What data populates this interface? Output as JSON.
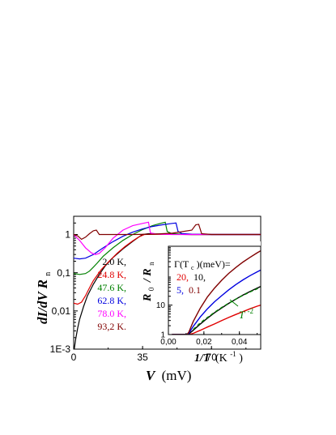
{
  "colors": {
    "black": "#000000",
    "red": "#e00000",
    "green": "#008000",
    "blue": "#0000e0",
    "magenta": "#ff00ff",
    "darkred": "#800000"
  },
  "chart_data": [
    {
      "type": "line",
      "role": "main",
      "xlabel": "V",
      "xunit": "(mV)",
      "ylabel": "dI/dV R",
      "ylabel_sub": "n",
      "xlim": [
        0,
        95
      ],
      "ylim": [
        0.001,
        3
      ],
      "yscale": "log",
      "xticks": [
        "0",
        "35",
        "70"
      ],
      "xtick_values": [
        0,
        35,
        70
      ],
      "yticks": [
        "1E-3",
        "0,01",
        "0,1",
        "1"
      ],
      "ytick_values": [
        0.001,
        0.01,
        0.1,
        1
      ],
      "grid": false,
      "legend_position": "lower-center",
      "series": [
        {
          "name": "2.0 K,",
          "color": "#000000",
          "x": [
            0.3,
            1,
            2,
            3,
            5,
            7,
            10,
            13,
            16,
            20,
            25,
            30,
            33,
            35,
            38,
            42,
            50,
            60,
            70,
            80,
            95
          ],
          "y": [
            0.001,
            0.0018,
            0.0035,
            0.006,
            0.013,
            0.025,
            0.05,
            0.09,
            0.15,
            0.25,
            0.42,
            0.66,
            0.85,
            1.0,
            1.05,
            1.03,
            1.01,
            1.0,
            1.0,
            1.0,
            1.0
          ]
        },
        {
          "name": "24.8 K,",
          "color": "#e00000",
          "x": [
            0,
            2,
            4,
            6,
            8,
            10,
            14,
            18,
            22,
            26,
            30,
            33,
            36,
            40,
            50,
            60,
            70,
            80,
            95
          ],
          "y": [
            0.016,
            0.015,
            0.017,
            0.025,
            0.04,
            0.062,
            0.12,
            0.2,
            0.32,
            0.48,
            0.68,
            0.86,
            1.0,
            1.02,
            1.01,
            1.0,
            1.0,
            1.0,
            1.0
          ]
        },
        {
          "name": "47.6 K,",
          "color": "#008000",
          "x": [
            0,
            3,
            6,
            8,
            10,
            12,
            15,
            20,
            25,
            30,
            35,
            40,
            44,
            46.5,
            47.5,
            50,
            60,
            70,
            80,
            95
          ],
          "y": [
            0.095,
            0.09,
            0.095,
            0.11,
            0.14,
            0.18,
            0.27,
            0.45,
            0.7,
            1.0,
            1.35,
            1.7,
            1.95,
            2.1,
            1.2,
            1.05,
            1.0,
            1.0,
            1.0,
            1.0
          ]
        },
        {
          "name": "62.8 K,",
          "color": "#0000e0",
          "x": [
            0,
            3,
            6,
            10,
            15,
            20,
            25,
            30,
            35,
            40,
            45,
            50,
            52,
            53,
            55,
            60,
            70,
            80,
            95
          ],
          "y": [
            0.24,
            0.23,
            0.24,
            0.3,
            0.45,
            0.65,
            0.9,
            1.15,
            1.4,
            1.62,
            1.8,
            1.95,
            2.0,
            1.2,
            1.06,
            1.02,
            1.0,
            1.0,
            1.0
          ]
        },
        {
          "name": "78.0 K,",
          "color": "#ff00ff",
          "x": [
            0,
            3,
            6,
            9,
            11,
            13,
            16,
            20,
            25,
            30,
            35,
            38,
            39,
            42,
            50,
            60,
            70,
            80,
            95
          ],
          "y": [
            1.0,
            0.7,
            0.45,
            0.33,
            0.3,
            0.32,
            0.45,
            0.8,
            1.3,
            1.7,
            1.95,
            2.1,
            1.1,
            1.03,
            1.0,
            1.0,
            1.0,
            1.0,
            1.0
          ]
        },
        {
          "name": "93,2 K.",
          "color": "#800000",
          "x": [
            0,
            2,
            4,
            6,
            8,
            10,
            11.5,
            13,
            16,
            20,
            30,
            40,
            50,
            60,
            62,
            63.5,
            65,
            70,
            80,
            95
          ],
          "y": [
            1.0,
            0.92,
            0.75,
            0.85,
            1.05,
            1.25,
            1.3,
            1.0,
            1.0,
            1.0,
            1.0,
            1.02,
            1.08,
            1.3,
            1.8,
            1.85,
            1.05,
            1.0,
            1.0,
            1.0
          ]
        }
      ]
    },
    {
      "type": "line",
      "role": "inset",
      "xlabel": "1/T",
      "xunit": "(K",
      "xunit_sup": "-1",
      "ylabel": "R",
      "ylabel_sub": "0",
      "ylabel_rest": "/ R",
      "ylabel_sub2": "n",
      "xlim": [
        0,
        0.052
      ],
      "ylim": [
        1,
        1000
      ],
      "yscale": "log",
      "xticks": [
        "0,00",
        "0,02",
        "0,04"
      ],
      "xtick_values": [
        0,
        0.02,
        0.04
      ],
      "yticks": [
        "1",
        "10"
      ],
      "ytick_values": [
        1,
        10
      ],
      "grid": false,
      "legend_title": "Γ(T",
      "legend_title_sub": "c",
      "legend_title_rest": ")(meV)=",
      "legend_values": [
        "20,",
        "10,",
        "5,",
        "0.1"
      ],
      "annotation": "T",
      "annotation_sup": "-2",
      "series": [
        {
          "name": "20",
          "color": "#e00000",
          "x": [
            0.002,
            0.0105,
            0.0115,
            0.014,
            0.018,
            0.022,
            0.026,
            0.03,
            0.034,
            0.038,
            0.042,
            0.046,
            0.05,
            0.052
          ],
          "y": [
            1,
            1,
            1.0,
            1.1,
            1.4,
            1.8,
            2.3,
            3.0,
            3.8,
            4.8,
            6.0,
            7.5,
            9.2,
            10
          ]
        },
        {
          "name": "10",
          "color": "#000000",
          "x": [
            0.002,
            0.0105,
            0.0115,
            0.014,
            0.018,
            0.022,
            0.026,
            0.03,
            0.034,
            0.038,
            0.042,
            0.046,
            0.05,
            0.052
          ],
          "y": [
            1,
            1,
            1.05,
            1.4,
            2.3,
            3.6,
            5.5,
            8.0,
            11.5,
            16,
            22,
            29,
            38,
            43
          ]
        },
        {
          "name": "5",
          "color": "#0000e0",
          "x": [
            0.002,
            0.0105,
            0.0115,
            0.014,
            0.018,
            0.022,
            0.026,
            0.03,
            0.034,
            0.038,
            0.042,
            0.046,
            0.05,
            0.052
          ],
          "y": [
            1,
            1,
            1.1,
            1.9,
            4.0,
            7.5,
            13,
            21,
            33,
            50,
            72,
            100,
            135,
            155
          ]
        },
        {
          "name": "0.1",
          "color": "#800000",
          "x": [
            0.002,
            0.0105,
            0.0115,
            0.014,
            0.018,
            0.022,
            0.026,
            0.03,
            0.034,
            0.038,
            0.042,
            0.046,
            0.05,
            0.052
          ],
          "y": [
            1,
            1,
            1.2,
            2.8,
            8.0,
            19,
            38,
            70,
            120,
            190,
            290,
            420,
            600,
            700
          ]
        },
        {
          "name": "T^-2 fit",
          "color": "#008000",
          "dashed": true,
          "x": [
            0.014,
            0.018,
            0.022,
            0.026,
            0.03,
            0.034,
            0.038,
            0.042,
            0.046,
            0.05,
            0.052
          ],
          "y": [
            1.5,
            2.5,
            3.8,
            5.7,
            8.3,
            11.6,
            16,
            21.5,
            28,
            36,
            41
          ]
        }
      ]
    }
  ]
}
